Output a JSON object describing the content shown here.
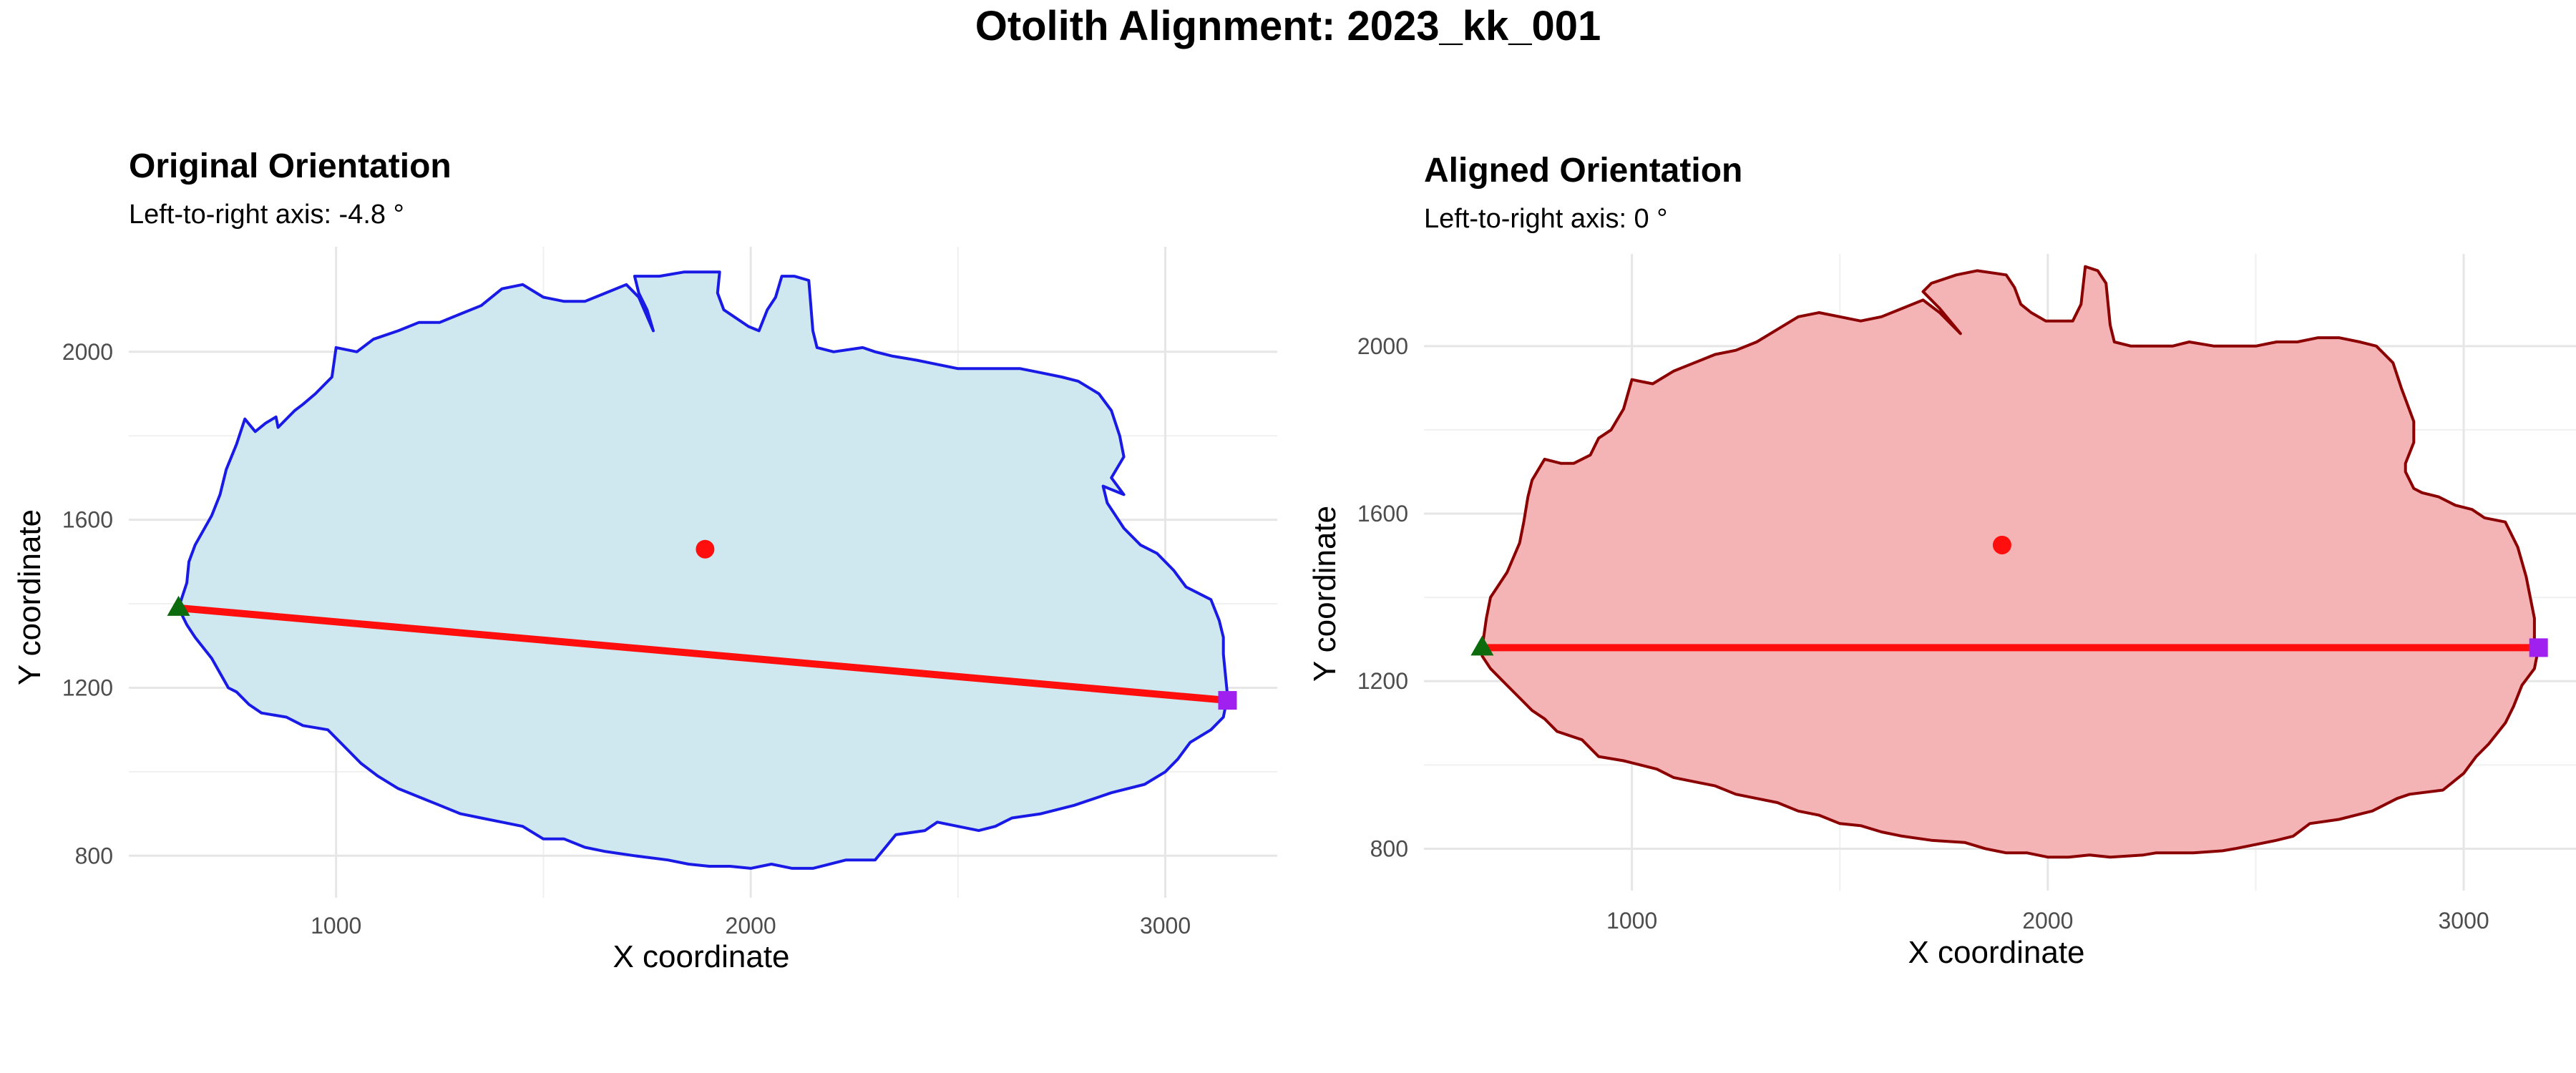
{
  "page": {
    "title": "Otolith Alignment: 2023_kk_001"
  },
  "chart_data": [
    {
      "type": "scatter",
      "title": "Original Orientation",
      "subtitle": "Left-to-right axis: -4.8 °",
      "xlabel": "X coordinate",
      "ylabel": "Y coordinate",
      "xlim": [
        500,
        3270
      ],
      "ylim": [
        700,
        2250
      ],
      "x_ticks": [
        1000,
        2000,
        3000
      ],
      "x_minor_ticks": [
        1500,
        2500
      ],
      "y_ticks": [
        800,
        1200,
        1600,
        2000
      ],
      "y_minor_ticks": [
        1000,
        1400,
        1800
      ],
      "grid": true,
      "colors": {
        "fill": "#cfe8ef",
        "outline": "#1a1ae6",
        "axis_line": "#ff0e0e",
        "centroid": "#ff0e0e",
        "left_marker": "#0c6b0c",
        "right_marker": "#a020f0"
      },
      "outline": [
        [
          620,
          1390
        ],
        [
          640,
          1450
        ],
        [
          645,
          1500
        ],
        [
          660,
          1540
        ],
        [
          700,
          1610
        ],
        [
          720,
          1660
        ],
        [
          735,
          1720
        ],
        [
          760,
          1780
        ],
        [
          780,
          1840
        ],
        [
          805,
          1810
        ],
        [
          830,
          1830
        ],
        [
          855,
          1845
        ],
        [
          860,
          1820
        ],
        [
          900,
          1860
        ],
        [
          920,
          1875
        ],
        [
          950,
          1900
        ],
        [
          990,
          1940
        ],
        [
          1000,
          2010
        ],
        [
          1050,
          2000
        ],
        [
          1090,
          2030
        ],
        [
          1150,
          2050
        ],
        [
          1200,
          2070
        ],
        [
          1250,
          2070
        ],
        [
          1300,
          2090
        ],
        [
          1350,
          2110
        ],
        [
          1400,
          2150
        ],
        [
          1450,
          2160
        ],
        [
          1500,
          2130
        ],
        [
          1550,
          2120
        ],
        [
          1600,
          2120
        ],
        [
          1650,
          2140
        ],
        [
          1700,
          2160
        ],
        [
          1730,
          2130
        ],
        [
          1765,
          2050
        ],
        [
          1750,
          2100
        ],
        [
          1730,
          2140
        ],
        [
          1720,
          2180
        ],
        [
          1780,
          2180
        ],
        [
          1840,
          2190
        ],
        [
          1925,
          2190
        ],
        [
          1920,
          2140
        ],
        [
          1935,
          2100
        ],
        [
          1950,
          2090
        ],
        [
          1995,
          2060
        ],
        [
          2020,
          2050
        ],
        [
          2040,
          2100
        ],
        [
          2060,
          2130
        ],
        [
          2075,
          2180
        ],
        [
          2105,
          2180
        ],
        [
          2140,
          2170
        ],
        [
          2150,
          2050
        ],
        [
          2160,
          2010
        ],
        [
          2200,
          2000
        ],
        [
          2270,
          2010
        ],
        [
          2300,
          2000
        ],
        [
          2340,
          1990
        ],
        [
          2400,
          1980
        ],
        [
          2450,
          1970
        ],
        [
          2500,
          1960
        ],
        [
          2550,
          1960
        ],
        [
          2600,
          1960
        ],
        [
          2650,
          1960
        ],
        [
          2700,
          1950
        ],
        [
          2750,
          1940
        ],
        [
          2790,
          1930
        ],
        [
          2840,
          1900
        ],
        [
          2870,
          1860
        ],
        [
          2890,
          1800
        ],
        [
          2900,
          1750
        ],
        [
          2870,
          1700
        ],
        [
          2900,
          1660
        ],
        [
          2850,
          1680
        ],
        [
          2860,
          1640
        ],
        [
          2880,
          1610
        ],
        [
          2900,
          1580
        ],
        [
          2940,
          1540
        ],
        [
          2980,
          1520
        ],
        [
          3020,
          1480
        ],
        [
          3050,
          1440
        ],
        [
          3110,
          1410
        ],
        [
          3130,
          1360
        ],
        [
          3140,
          1320
        ],
        [
          3140,
          1280
        ],
        [
          3145,
          1230
        ],
        [
          3150,
          1180
        ],
        [
          3140,
          1130
        ],
        [
          3110,
          1100
        ],
        [
          3060,
          1070
        ],
        [
          3030,
          1030
        ],
        [
          3000,
          1000
        ],
        [
          2950,
          970
        ],
        [
          2870,
          950
        ],
        [
          2840,
          940
        ],
        [
          2780,
          920
        ],
        [
          2700,
          900
        ],
        [
          2630,
          890
        ],
        [
          2590,
          870
        ],
        [
          2550,
          860
        ],
        [
          2500,
          870
        ],
        [
          2450,
          880
        ],
        [
          2420,
          860
        ],
        [
          2350,
          850
        ],
        [
          2300,
          790
        ],
        [
          2260,
          790
        ],
        [
          2230,
          790
        ],
        [
          2150,
          770
        ],
        [
          2100,
          770
        ],
        [
          2050,
          780
        ],
        [
          2000,
          770
        ],
        [
          1950,
          775
        ],
        [
          1900,
          775
        ],
        [
          1850,
          780
        ],
        [
          1800,
          790
        ],
        [
          1720,
          800
        ],
        [
          1650,
          810
        ],
        [
          1600,
          820
        ],
        [
          1550,
          840
        ],
        [
          1500,
          840
        ],
        [
          1450,
          870
        ],
        [
          1400,
          880
        ],
        [
          1350,
          890
        ],
        [
          1300,
          900
        ],
        [
          1250,
          920
        ],
        [
          1200,
          940
        ],
        [
          1150,
          960
        ],
        [
          1100,
          990
        ],
        [
          1060,
          1020
        ],
        [
          1020,
          1060
        ],
        [
          980,
          1100
        ],
        [
          920,
          1110
        ],
        [
          880,
          1130
        ],
        [
          820,
          1140
        ],
        [
          790,
          1160
        ],
        [
          760,
          1190
        ],
        [
          740,
          1200
        ],
        [
          700,
          1270
        ],
        [
          660,
          1320
        ],
        [
          640,
          1350
        ],
        [
          620,
          1390
        ]
      ],
      "centroid": {
        "x": 1890,
        "y": 1530
      },
      "axis_line": {
        "x": [
          620,
          3150
        ],
        "y": [
          1390,
          1170
        ]
      },
      "left_point": {
        "x": 620,
        "y": 1390,
        "marker": "triangle"
      },
      "right_point": {
        "x": 3150,
        "y": 1170,
        "marker": "square"
      }
    },
    {
      "type": "scatter",
      "title": "Aligned Orientation",
      "subtitle": "Left-to-right axis: 0 °",
      "xlabel": "X coordinate",
      "ylabel": "Y coordinate",
      "xlim": [
        500,
        3270
      ],
      "ylim": [
        700,
        2220
      ],
      "x_ticks": [
        1000,
        2000,
        3000
      ],
      "x_minor_ticks": [
        1500,
        2500
      ],
      "y_ticks": [
        800,
        1200,
        1600,
        2000
      ],
      "y_minor_ticks": [
        1000,
        1400,
        1800
      ],
      "grid": true,
      "colors": {
        "fill": "#f4b3b5",
        "outline": "#8b0000",
        "axis_line": "#ff0e0e",
        "centroid": "#ff0e0e",
        "left_marker": "#0c6b0c",
        "right_marker": "#a020f0"
      },
      "outline": [
        [
          640,
          1280
        ],
        [
          650,
          1350
        ],
        [
          660,
          1400
        ],
        [
          700,
          1460
        ],
        [
          730,
          1530
        ],
        [
          740,
          1580
        ],
        [
          750,
          1640
        ],
        [
          760,
          1680
        ],
        [
          790,
          1730
        ],
        [
          830,
          1720
        ],
        [
          860,
          1720
        ],
        [
          900,
          1740
        ],
        [
          920,
          1780
        ],
        [
          950,
          1800
        ],
        [
          980,
          1850
        ],
        [
          1000,
          1920
        ],
        [
          1050,
          1910
        ],
        [
          1100,
          1940
        ],
        [
          1150,
          1960
        ],
        [
          1200,
          1980
        ],
        [
          1250,
          1990
        ],
        [
          1300,
          2010
        ],
        [
          1350,
          2040
        ],
        [
          1400,
          2070
        ],
        [
          1450,
          2080
        ],
        [
          1500,
          2070
        ],
        [
          1550,
          2060
        ],
        [
          1600,
          2070
        ],
        [
          1650,
          2090
        ],
        [
          1700,
          2110
        ],
        [
          1740,
          2080
        ],
        [
          1790,
          2030
        ],
        [
          1740,
          2090
        ],
        [
          1700,
          2130
        ],
        [
          1720,
          2150
        ],
        [
          1780,
          2170
        ],
        [
          1830,
          2180
        ],
        [
          1900,
          2170
        ],
        [
          1920,
          2140
        ],
        [
          1935,
          2100
        ],
        [
          1960,
          2080
        ],
        [
          1995,
          2060
        ],
        [
          2030,
          2060
        ],
        [
          2060,
          2060
        ],
        [
          2080,
          2100
        ],
        [
          2090,
          2190
        ],
        [
          2120,
          2180
        ],
        [
          2140,
          2150
        ],
        [
          2150,
          2050
        ],
        [
          2160,
          2010
        ],
        [
          2200,
          2000
        ],
        [
          2300,
          2000
        ],
        [
          2340,
          2010
        ],
        [
          2400,
          2000
        ],
        [
          2450,
          2000
        ],
        [
          2500,
          2000
        ],
        [
          2550,
          2010
        ],
        [
          2600,
          2010
        ],
        [
          2650,
          2020
        ],
        [
          2700,
          2020
        ],
        [
          2750,
          2010
        ],
        [
          2790,
          2000
        ],
        [
          2830,
          1960
        ],
        [
          2850,
          1900
        ],
        [
          2880,
          1820
        ],
        [
          2880,
          1770
        ],
        [
          2860,
          1720
        ],
        [
          2860,
          1700
        ],
        [
          2880,
          1660
        ],
        [
          2900,
          1650
        ],
        [
          2940,
          1640
        ],
        [
          2980,
          1620
        ],
        [
          3020,
          1610
        ],
        [
          3050,
          1590
        ],
        [
          3100,
          1580
        ],
        [
          3130,
          1520
        ],
        [
          3150,
          1450
        ],
        [
          3160,
          1400
        ],
        [
          3170,
          1350
        ],
        [
          3170,
          1300
        ],
        [
          3180,
          1280
        ],
        [
          3170,
          1230
        ],
        [
          3140,
          1190
        ],
        [
          3120,
          1140
        ],
        [
          3100,
          1100
        ],
        [
          3060,
          1050
        ],
        [
          3030,
          1020
        ],
        [
          3000,
          980
        ],
        [
          2950,
          940
        ],
        [
          2870,
          930
        ],
        [
          2840,
          920
        ],
        [
          2780,
          890
        ],
        [
          2700,
          870
        ],
        [
          2630,
          860
        ],
        [
          2590,
          830
        ],
        [
          2550,
          820
        ],
        [
          2500,
          810
        ],
        [
          2450,
          800
        ],
        [
          2420,
          795
        ],
        [
          2350,
          790
        ],
        [
          2300,
          790
        ],
        [
          2260,
          790
        ],
        [
          2230,
          785
        ],
        [
          2150,
          780
        ],
        [
          2100,
          785
        ],
        [
          2050,
          780
        ],
        [
          2000,
          780
        ],
        [
          1950,
          790
        ],
        [
          1900,
          790
        ],
        [
          1850,
          800
        ],
        [
          1800,
          815
        ],
        [
          1720,
          820
        ],
        [
          1650,
          830
        ],
        [
          1600,
          840
        ],
        [
          1550,
          855
        ],
        [
          1500,
          860
        ],
        [
          1450,
          880
        ],
        [
          1400,
          890
        ],
        [
          1350,
          910
        ],
        [
          1300,
          920
        ],
        [
          1250,
          930
        ],
        [
          1200,
          950
        ],
        [
          1150,
          960
        ],
        [
          1100,
          970
        ],
        [
          1060,
          990
        ],
        [
          1020,
          1000
        ],
        [
          980,
          1010
        ],
        [
          920,
          1020
        ],
        [
          880,
          1060
        ],
        [
          820,
          1080
        ],
        [
          790,
          1110
        ],
        [
          760,
          1130
        ],
        [
          740,
          1150
        ],
        [
          700,
          1190
        ],
        [
          660,
          1230
        ],
        [
          640,
          1260
        ],
        [
          640,
          1280
        ]
      ],
      "centroid": {
        "x": 1890,
        "y": 1525
      },
      "axis_line": {
        "x": [
          640,
          3180
        ],
        "y": [
          1280,
          1280
        ]
      },
      "left_point": {
        "x": 640,
        "y": 1280,
        "marker": "triangle"
      },
      "right_point": {
        "x": 3180,
        "y": 1280,
        "marker": "square"
      }
    }
  ]
}
